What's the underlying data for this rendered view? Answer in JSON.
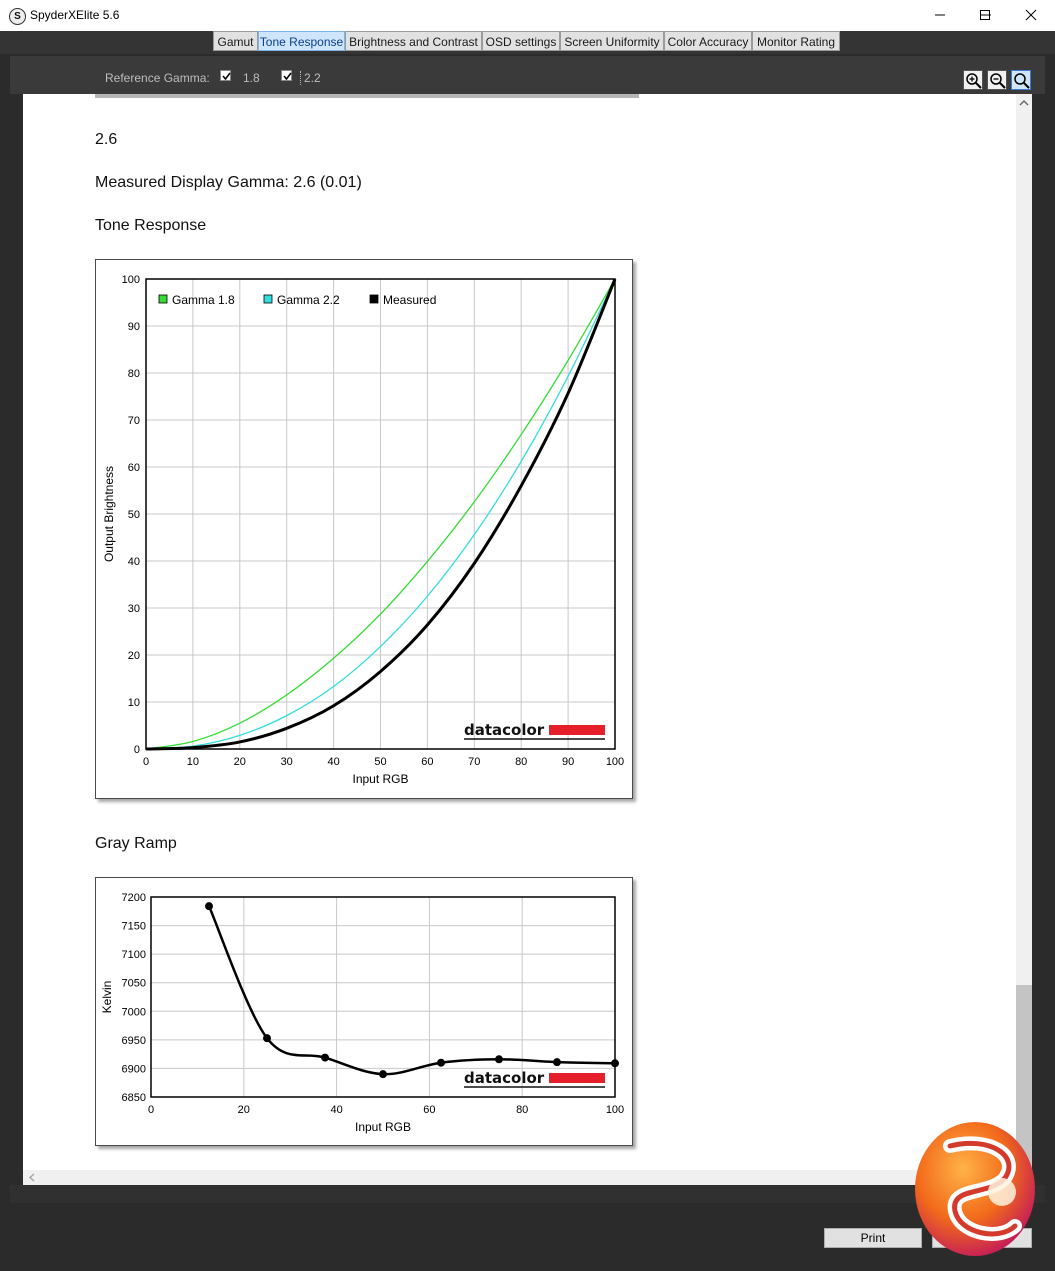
{
  "window": {
    "title": "SpyderXElite 5.6",
    "app_icon_letter": "S"
  },
  "tabs": [
    {
      "label": "Gamut",
      "active": false
    },
    {
      "label": "Tone Response",
      "active": true
    },
    {
      "label": "Brightness and Contrast",
      "active": false
    },
    {
      "label": "OSD settings",
      "active": false
    },
    {
      "label": "Screen Uniformity",
      "active": false
    },
    {
      "label": "Color Accuracy",
      "active": false
    },
    {
      "label": "Monitor Rating",
      "active": false
    }
  ],
  "toolbar": {
    "reference_gamma_label": "Reference Gamma:",
    "gamma_options": [
      {
        "label": "1.8",
        "checked": true
      },
      {
        "label": "2.2",
        "checked": true
      }
    ]
  },
  "report": {
    "gamma_value": "2.6",
    "measured_gamma": "Measured Display Gamma: 2.6 (0.01)",
    "tone_response_heading": "Tone Response",
    "gray_ramp_heading": "Gray Ramp",
    "brand_watermark": "datacolor"
  },
  "footer": {
    "print_label": "Print"
  },
  "colors": {
    "gamma18": "#33dd33",
    "gamma22": "#33dddd",
    "measured": "#000000",
    "brand_red": "#e6202a",
    "active_tab": "#cfe5fb"
  },
  "chart_data": [
    {
      "type": "line",
      "title": "",
      "xlabel": "Input RGB",
      "ylabel": "Output Brightness",
      "xlim": [
        0,
        100
      ],
      "ylim": [
        0,
        100
      ],
      "x_ticks": [
        0,
        10,
        20,
        30,
        40,
        50,
        60,
        70,
        80,
        90,
        100
      ],
      "y_ticks": [
        0,
        10,
        20,
        30,
        40,
        50,
        60,
        70,
        80,
        90,
        100
      ],
      "grid": true,
      "legend_position": "top-left",
      "series": [
        {
          "name": "Gamma 1.8",
          "color": "#33dd33",
          "x": [
            0,
            10,
            20,
            30,
            40,
            50,
            60,
            70,
            80,
            90,
            100
          ],
          "y": [
            0,
            1.6,
            5.5,
            11.5,
            19.3,
            28.7,
            39.9,
            52.6,
            66.9,
            82.7,
            100
          ]
        },
        {
          "name": "Gamma 2.2",
          "color": "#33dddd",
          "x": [
            0,
            10,
            20,
            30,
            40,
            50,
            60,
            70,
            80,
            90,
            100
          ],
          "y": [
            0,
            0.6,
            2.9,
            7.1,
            13.3,
            21.8,
            32.5,
            45.6,
            61.2,
            79.3,
            100
          ]
        },
        {
          "name": "Measured",
          "color": "#000000",
          "x": [
            0,
            10,
            20,
            30,
            40,
            50,
            60,
            70,
            80,
            90,
            100
          ],
          "y": [
            0,
            0.3,
            1.5,
            4.4,
            9.2,
            16.5,
            26.4,
            39.5,
            56.0,
            75.7,
            100
          ]
        }
      ]
    },
    {
      "type": "line",
      "title": "",
      "xlabel": "Input RGB",
      "ylabel": "Kelvin",
      "xlim": [
        0,
        100
      ],
      "ylim": [
        6850,
        7200
      ],
      "x_ticks": [
        0,
        20,
        40,
        60,
        80,
        100
      ],
      "y_ticks": [
        6850,
        6900,
        6950,
        7000,
        7050,
        7100,
        7150,
        7200
      ],
      "grid": true,
      "series": [
        {
          "color": "#000000",
          "x": [
            12.5,
            25,
            37.5,
            50,
            62.5,
            75,
            87.5,
            100
          ],
          "y": [
            7184,
            6953,
            6919,
            6890,
            6910,
            6916,
            6911,
            6909
          ]
        }
      ]
    }
  ]
}
